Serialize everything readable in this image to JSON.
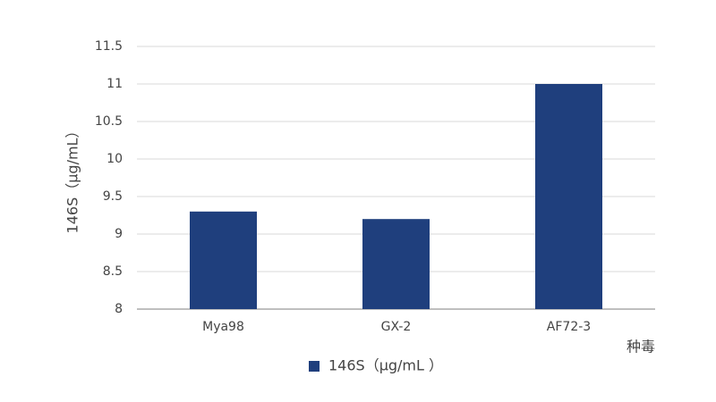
{
  "chart_data": {
    "type": "bar",
    "y_axis_label": "146S（μg/mL）",
    "x_axis_label": "种毒",
    "categories": [
      "Mya98",
      "GX-2",
      "AF72-3"
    ],
    "series": [
      {
        "name": "146S（μg/mL ）",
        "color": "#1f3f7d",
        "values": [
          9.3,
          9.2,
          11
        ]
      }
    ],
    "ylim": [
      8,
      11.5
    ],
    "yticks": [
      8,
      8.5,
      9,
      9.5,
      10,
      10.5,
      11,
      11.5
    ],
    "grid": true,
    "legend": "bottom"
  }
}
